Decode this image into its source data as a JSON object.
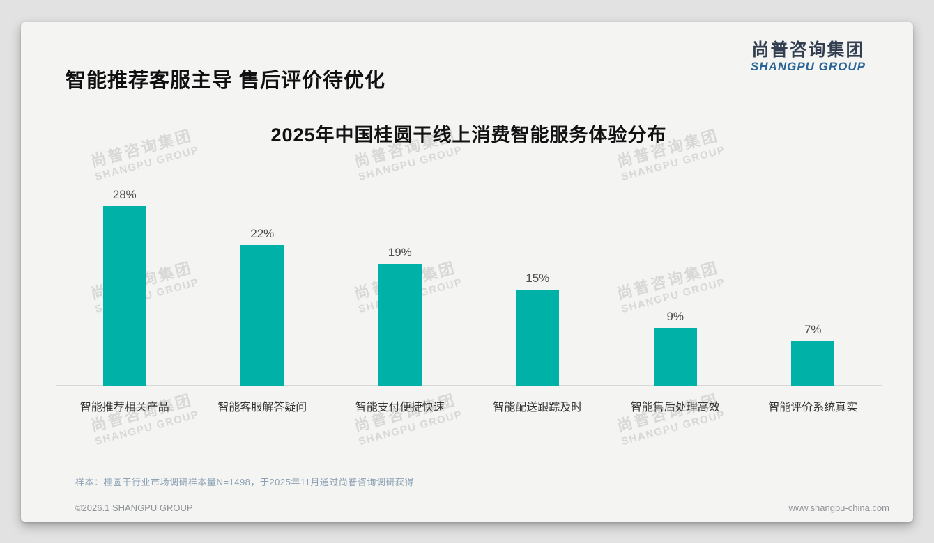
{
  "header": {
    "title": "智能推荐客服主导 售后评价待优化",
    "logo_cn": "尚普咨询集团",
    "logo_en": "SHANGPU GROUP"
  },
  "watermark": {
    "line1": "尚普咨询集团",
    "line2": "SHANGPU GROUP"
  },
  "chart_data": {
    "type": "bar",
    "title": "2025年中国桂圆干线上消费智能服务体验分布",
    "categories": [
      "智能推荐相关产品",
      "智能客服解答疑问",
      "智能支付便捷快速",
      "智能配送跟踪及时",
      "智能售后处理高效",
      "智能评价系统真实"
    ],
    "values": [
      28,
      22,
      19,
      15,
      9,
      7
    ],
    "value_labels": [
      "28%",
      "22%",
      "19%",
      "15%",
      "9%",
      "7%"
    ],
    "unit": "%",
    "xlabel": "",
    "ylabel": "",
    "ylim": [
      0,
      30
    ],
    "grid": false,
    "legend": false,
    "bar_color": "#00b1a7"
  },
  "footnote": {
    "text": "样本：桂圆干行业市场调研样本量N=1498，于2025年11月通过尚普咨询调研获得"
  },
  "footer": {
    "left": "©2026.1 SHANGPU GROUP",
    "right": "www.shangpu-china.com"
  },
  "colors": {
    "bar": "#00b1a7",
    "card_bg": "#f4f4f3",
    "page_bg": "#e2e2e2",
    "logo_cn": "#333f50",
    "logo_en": "#2a6496",
    "watermark": "#d8d8d7",
    "note": "#8da2b5",
    "footer_text": "#8f9296",
    "axis": "#d8d8d8"
  }
}
